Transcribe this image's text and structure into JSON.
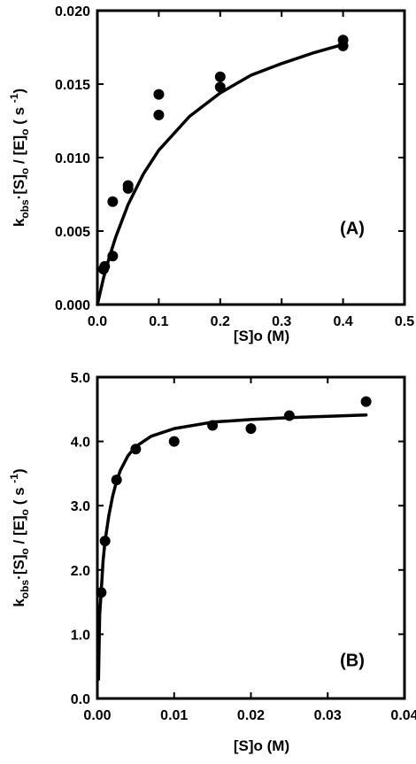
{
  "chart_data": [
    {
      "type": "scatter",
      "panel_label": "(A)",
      "xlabel": "[S]o (M)",
      "ylabel_parts": {
        "k": "k",
        "obs": "obs",
        "mid": "·[S]",
        "o1": "o",
        "div": " / [E]",
        "o2": "o",
        "unit_open": " ( s ",
        "exp": "-1",
        "unit_close": ")"
      },
      "xlim": [
        0,
        0.5
      ],
      "ylim": [
        0,
        0.02
      ],
      "xticks": [
        "0.0",
        "0.1",
        "0.2",
        "0.3",
        "0.4",
        "0.5"
      ],
      "yticks": [
        "0.000",
        "0.005",
        "0.010",
        "0.015",
        "0.020"
      ],
      "points": [
        {
          "x": 0.01,
          "y": 0.0024
        },
        {
          "x": 0.012,
          "y": 0.0026
        },
        {
          "x": 0.025,
          "y": 0.0033
        },
        {
          "x": 0.025,
          "y": 0.007
        },
        {
          "x": 0.05,
          "y": 0.0079
        },
        {
          "x": 0.05,
          "y": 0.0081
        },
        {
          "x": 0.1,
          "y": 0.0129
        },
        {
          "x": 0.1,
          "y": 0.0143
        },
        {
          "x": 0.2,
          "y": 0.0148
        },
        {
          "x": 0.2,
          "y": 0.0155
        },
        {
          "x": 0.4,
          "y": 0.0176
        },
        {
          "x": 0.4,
          "y": 0.018
        }
      ],
      "fit_line": {
        "x": [
          0,
          0.005,
          0.01,
          0.02,
          0.03,
          0.05,
          0.075,
          0.1,
          0.15,
          0.2,
          0.25,
          0.3,
          0.35,
          0.4
        ],
        "y": [
          0,
          0.0009,
          0.0018,
          0.0033,
          0.0046,
          0.0068,
          0.0089,
          0.0105,
          0.0128,
          0.0144,
          0.0156,
          0.0164,
          0.0171,
          0.0177
        ]
      }
    },
    {
      "type": "scatter",
      "panel_label": "(B)",
      "xlabel": "[S]o (M)",
      "ylabel_parts": {
        "k": "k",
        "obs": "obs",
        "mid": "·[S]",
        "o1": "o",
        "div": " / [E]",
        "o2": "o",
        "unit_open": " ( s ",
        "exp": "-1",
        "unit_close": ")"
      },
      "xlim": [
        0,
        0.04
      ],
      "ylim": [
        0,
        5.0
      ],
      "xticks": [
        "0.00",
        "0.01",
        "0.02",
        "0.03",
        "0.04"
      ],
      "yticks": [
        "0.0",
        "1.0",
        "2.0",
        "3.0",
        "4.0",
        "5.0"
      ],
      "points": [
        {
          "x": 0.0005,
          "y": 1.65
        },
        {
          "x": 0.001,
          "y": 2.45
        },
        {
          "x": 0.0025,
          "y": 3.4
        },
        {
          "x": 0.005,
          "y": 3.88
        },
        {
          "x": 0.01,
          "y": 4.0
        },
        {
          "x": 0.015,
          "y": 4.25
        },
        {
          "x": 0.02,
          "y": 4.2
        },
        {
          "x": 0.025,
          "y": 4.4
        },
        {
          "x": 0.035,
          "y": 4.62
        }
      ],
      "fit_line": {
        "x": [
          0.00015,
          0.0003,
          0.0005,
          0.00075,
          0.001,
          0.0015,
          0.002,
          0.0025,
          0.003,
          0.004,
          0.005,
          0.007,
          0.01,
          0.015,
          0.02,
          0.025,
          0.03,
          0.035
        ],
        "y": [
          0.3,
          1.3,
          1.65,
          2.15,
          2.45,
          2.85,
          3.15,
          3.38,
          3.55,
          3.78,
          3.92,
          4.08,
          4.2,
          4.3,
          4.34,
          4.37,
          4.39,
          4.41
        ]
      }
    }
  ]
}
